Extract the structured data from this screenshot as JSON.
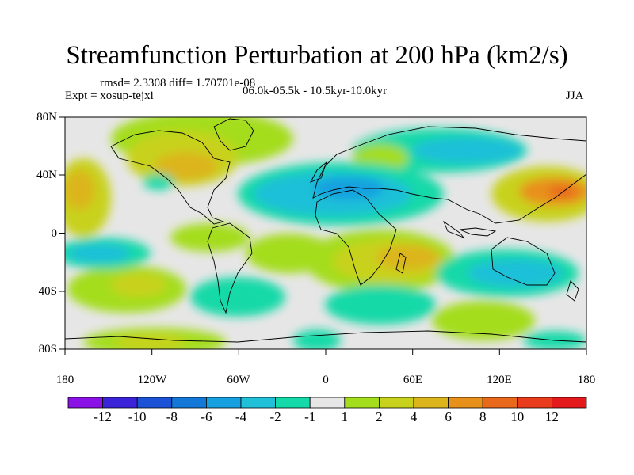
{
  "title": "Streamfunction Perturbation at 200 hPa (km2/s)",
  "info": {
    "stats": "rmsd= 2.3308 diff= 1.70701e-08",
    "expt": "Expt = xosup-tejxi",
    "period": "06.0k-05.5k - 10.5kyr-10.0kyr",
    "season": "JJA"
  },
  "lat_labels": [
    "80N",
    "40N",
    "0",
    "40S",
    "80S"
  ],
  "lon_labels": [
    "180",
    "120W",
    "60W",
    "0",
    "60E",
    "120E",
    "180"
  ],
  "colorbar": {
    "labels": [
      "-12",
      "-10",
      "-8",
      "-6",
      "-4",
      "-2",
      "-1",
      "1",
      "2",
      "4",
      "6",
      "8",
      "10",
      "12"
    ],
    "colors": [
      "#8a12e6",
      "#3b23d9",
      "#1c53d6",
      "#1478d8",
      "#16a0e0",
      "#1fc0d8",
      "#14d9a8",
      "#e6e6e6",
      "#a4dd1c",
      "#c8d21c",
      "#dcb51c",
      "#e8901c",
      "#e8681c",
      "#e83c1c",
      "#e3191c"
    ]
  }
}
